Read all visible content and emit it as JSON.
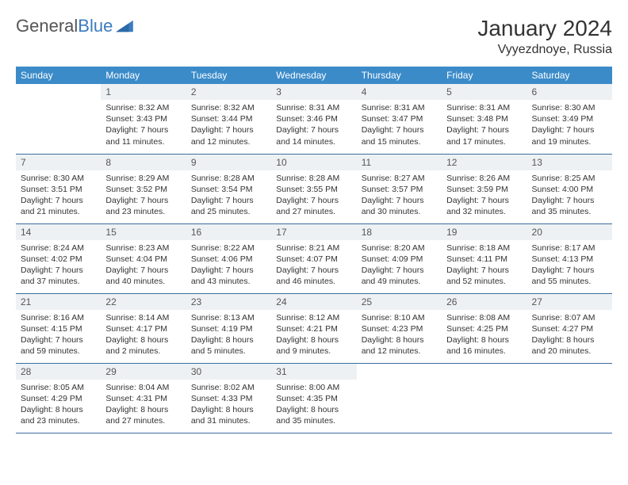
{
  "brand": {
    "part1": "General",
    "part2": "Blue"
  },
  "title": "January 2024",
  "location": "Vyyezdnoye, Russia",
  "colors": {
    "header_bg": "#3b8bc9",
    "header_text": "#ffffff",
    "daynum_bg": "#eef1f3",
    "row_border": "#3b6fa0",
    "brand_blue": "#3b7bbf"
  },
  "weekdays": [
    "Sunday",
    "Monday",
    "Tuesday",
    "Wednesday",
    "Thursday",
    "Friday",
    "Saturday"
  ],
  "weeks": [
    [
      null,
      {
        "n": "1",
        "sr": "Sunrise: 8:32 AM",
        "ss": "Sunset: 3:43 PM",
        "d1": "Daylight: 7 hours",
        "d2": "and 11 minutes."
      },
      {
        "n": "2",
        "sr": "Sunrise: 8:32 AM",
        "ss": "Sunset: 3:44 PM",
        "d1": "Daylight: 7 hours",
        "d2": "and 12 minutes."
      },
      {
        "n": "3",
        "sr": "Sunrise: 8:31 AM",
        "ss": "Sunset: 3:46 PM",
        "d1": "Daylight: 7 hours",
        "d2": "and 14 minutes."
      },
      {
        "n": "4",
        "sr": "Sunrise: 8:31 AM",
        "ss": "Sunset: 3:47 PM",
        "d1": "Daylight: 7 hours",
        "d2": "and 15 minutes."
      },
      {
        "n": "5",
        "sr": "Sunrise: 8:31 AM",
        "ss": "Sunset: 3:48 PM",
        "d1": "Daylight: 7 hours",
        "d2": "and 17 minutes."
      },
      {
        "n": "6",
        "sr": "Sunrise: 8:30 AM",
        "ss": "Sunset: 3:49 PM",
        "d1": "Daylight: 7 hours",
        "d2": "and 19 minutes."
      }
    ],
    [
      {
        "n": "7",
        "sr": "Sunrise: 8:30 AM",
        "ss": "Sunset: 3:51 PM",
        "d1": "Daylight: 7 hours",
        "d2": "and 21 minutes."
      },
      {
        "n": "8",
        "sr": "Sunrise: 8:29 AM",
        "ss": "Sunset: 3:52 PM",
        "d1": "Daylight: 7 hours",
        "d2": "and 23 minutes."
      },
      {
        "n": "9",
        "sr": "Sunrise: 8:28 AM",
        "ss": "Sunset: 3:54 PM",
        "d1": "Daylight: 7 hours",
        "d2": "and 25 minutes."
      },
      {
        "n": "10",
        "sr": "Sunrise: 8:28 AM",
        "ss": "Sunset: 3:55 PM",
        "d1": "Daylight: 7 hours",
        "d2": "and 27 minutes."
      },
      {
        "n": "11",
        "sr": "Sunrise: 8:27 AM",
        "ss": "Sunset: 3:57 PM",
        "d1": "Daylight: 7 hours",
        "d2": "and 30 minutes."
      },
      {
        "n": "12",
        "sr": "Sunrise: 8:26 AM",
        "ss": "Sunset: 3:59 PM",
        "d1": "Daylight: 7 hours",
        "d2": "and 32 minutes."
      },
      {
        "n": "13",
        "sr": "Sunrise: 8:25 AM",
        "ss": "Sunset: 4:00 PM",
        "d1": "Daylight: 7 hours",
        "d2": "and 35 minutes."
      }
    ],
    [
      {
        "n": "14",
        "sr": "Sunrise: 8:24 AM",
        "ss": "Sunset: 4:02 PM",
        "d1": "Daylight: 7 hours",
        "d2": "and 37 minutes."
      },
      {
        "n": "15",
        "sr": "Sunrise: 8:23 AM",
        "ss": "Sunset: 4:04 PM",
        "d1": "Daylight: 7 hours",
        "d2": "and 40 minutes."
      },
      {
        "n": "16",
        "sr": "Sunrise: 8:22 AM",
        "ss": "Sunset: 4:06 PM",
        "d1": "Daylight: 7 hours",
        "d2": "and 43 minutes."
      },
      {
        "n": "17",
        "sr": "Sunrise: 8:21 AM",
        "ss": "Sunset: 4:07 PM",
        "d1": "Daylight: 7 hours",
        "d2": "and 46 minutes."
      },
      {
        "n": "18",
        "sr": "Sunrise: 8:20 AM",
        "ss": "Sunset: 4:09 PM",
        "d1": "Daylight: 7 hours",
        "d2": "and 49 minutes."
      },
      {
        "n": "19",
        "sr": "Sunrise: 8:18 AM",
        "ss": "Sunset: 4:11 PM",
        "d1": "Daylight: 7 hours",
        "d2": "and 52 minutes."
      },
      {
        "n": "20",
        "sr": "Sunrise: 8:17 AM",
        "ss": "Sunset: 4:13 PM",
        "d1": "Daylight: 7 hours",
        "d2": "and 55 minutes."
      }
    ],
    [
      {
        "n": "21",
        "sr": "Sunrise: 8:16 AM",
        "ss": "Sunset: 4:15 PM",
        "d1": "Daylight: 7 hours",
        "d2": "and 59 minutes."
      },
      {
        "n": "22",
        "sr": "Sunrise: 8:14 AM",
        "ss": "Sunset: 4:17 PM",
        "d1": "Daylight: 8 hours",
        "d2": "and 2 minutes."
      },
      {
        "n": "23",
        "sr": "Sunrise: 8:13 AM",
        "ss": "Sunset: 4:19 PM",
        "d1": "Daylight: 8 hours",
        "d2": "and 5 minutes."
      },
      {
        "n": "24",
        "sr": "Sunrise: 8:12 AM",
        "ss": "Sunset: 4:21 PM",
        "d1": "Daylight: 8 hours",
        "d2": "and 9 minutes."
      },
      {
        "n": "25",
        "sr": "Sunrise: 8:10 AM",
        "ss": "Sunset: 4:23 PM",
        "d1": "Daylight: 8 hours",
        "d2": "and 12 minutes."
      },
      {
        "n": "26",
        "sr": "Sunrise: 8:08 AM",
        "ss": "Sunset: 4:25 PM",
        "d1": "Daylight: 8 hours",
        "d2": "and 16 minutes."
      },
      {
        "n": "27",
        "sr": "Sunrise: 8:07 AM",
        "ss": "Sunset: 4:27 PM",
        "d1": "Daylight: 8 hours",
        "d2": "and 20 minutes."
      }
    ],
    [
      {
        "n": "28",
        "sr": "Sunrise: 8:05 AM",
        "ss": "Sunset: 4:29 PM",
        "d1": "Daylight: 8 hours",
        "d2": "and 23 minutes."
      },
      {
        "n": "29",
        "sr": "Sunrise: 8:04 AM",
        "ss": "Sunset: 4:31 PM",
        "d1": "Daylight: 8 hours",
        "d2": "and 27 minutes."
      },
      {
        "n": "30",
        "sr": "Sunrise: 8:02 AM",
        "ss": "Sunset: 4:33 PM",
        "d1": "Daylight: 8 hours",
        "d2": "and 31 minutes."
      },
      {
        "n": "31",
        "sr": "Sunrise: 8:00 AM",
        "ss": "Sunset: 4:35 PM",
        "d1": "Daylight: 8 hours",
        "d2": "and 35 minutes."
      },
      null,
      null,
      null
    ]
  ]
}
